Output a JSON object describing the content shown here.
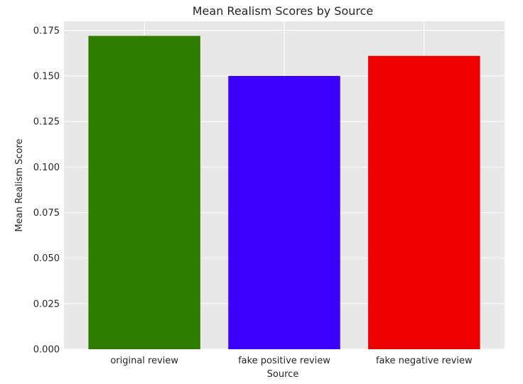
{
  "chart_data": {
    "type": "bar",
    "title": "Mean Realism Scores by Source",
    "xlabel": "Source",
    "ylabel": "Mean Realism Score",
    "categories": [
      "original review",
      "fake positive review",
      "fake negative review"
    ],
    "values": [
      0.172,
      0.15,
      0.161
    ],
    "colors": [
      "#2e7d00",
      "#3c00ff",
      "#ee0000"
    ],
    "ylim": [
      0,
      0.18
    ],
    "yticks": [
      "0.000",
      "0.025",
      "0.050",
      "0.075",
      "0.100",
      "0.125",
      "0.150",
      "0.175"
    ],
    "grid": true,
    "background": "#e8e8e8",
    "grid_color": "#ffffff"
  }
}
